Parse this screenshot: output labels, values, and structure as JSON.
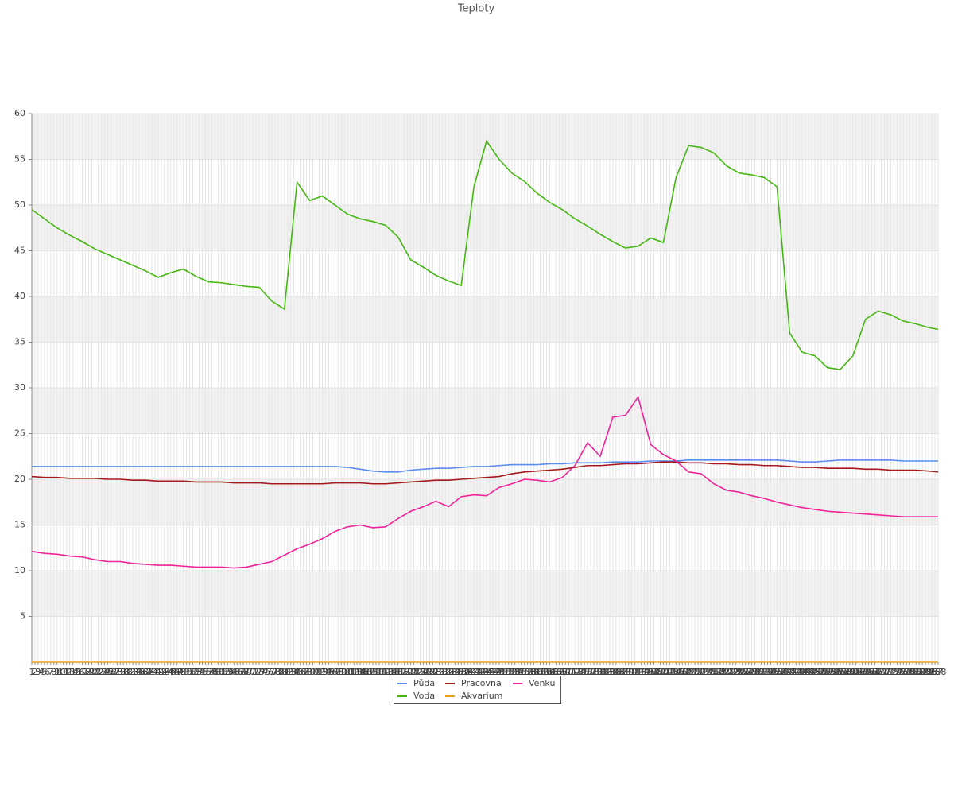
{
  "chart_data": {
    "type": "line",
    "title": "Teploty",
    "x": [
      1,
      5,
      9,
      13,
      17,
      21,
      25,
      29,
      33,
      37,
      41,
      45,
      49,
      53,
      57,
      61,
      65,
      69,
      73,
      77,
      81,
      85,
      89,
      93,
      97,
      101,
      105,
      109,
      113,
      117,
      121,
      125,
      129,
      133,
      137,
      141,
      145,
      149,
      153,
      157,
      161,
      165,
      169,
      173,
      177,
      181,
      185,
      189,
      193,
      197,
      201,
      205,
      209,
      213,
      217,
      221,
      225,
      229,
      233,
      237,
      241,
      245,
      249,
      253,
      257,
      261,
      265,
      269,
      273,
      277,
      281,
      285,
      288
    ],
    "xlim": [
      1,
      288
    ],
    "xticks": [
      1,
      2,
      3,
      4,
      5,
      6,
      7,
      8,
      9,
      10,
      11,
      12,
      13,
      14,
      15,
      16,
      17,
      18,
      19,
      20,
      21,
      22,
      23,
      24,
      25,
      26,
      27,
      28,
      29,
      30,
      31,
      32,
      33,
      34,
      35,
      36,
      37,
      38,
      39,
      40,
      41,
      42,
      43,
      44,
      45,
      46,
      47,
      48,
      49,
      50,
      51,
      52,
      53,
      54,
      55,
      56,
      57,
      58,
      59,
      60,
      61,
      62,
      63,
      64,
      65,
      66,
      67,
      68,
      69,
      70,
      71,
      72,
      73,
      74,
      75,
      76,
      77,
      78,
      79,
      80,
      81,
      82,
      83,
      84,
      85,
      86,
      87,
      88,
      89,
      90,
      91,
      92,
      93,
      94,
      95,
      96,
      97,
      98,
      99,
      100,
      101,
      102,
      103,
      104,
      105,
      106,
      107,
      108,
      109,
      110,
      111,
      112,
      113,
      114,
      115,
      116,
      117,
      118,
      119,
      120,
      121,
      122,
      123,
      124,
      125,
      126,
      127,
      128,
      129,
      130,
      131,
      132,
      133,
      134,
      135,
      136,
      137,
      138,
      139,
      140,
      141,
      142,
      143,
      144,
      145,
      146,
      147,
      148,
      149,
      150,
      151,
      152,
      153,
      154,
      155,
      156,
      157,
      158,
      159,
      160,
      161,
      162,
      163,
      164,
      165,
      166,
      167,
      168,
      169,
      170,
      171,
      172,
      173,
      174,
      175,
      176,
      177,
      178,
      179,
      180,
      181,
      182,
      183,
      184,
      185,
      186,
      187,
      188,
      189,
      190,
      191,
      192,
      193,
      194,
      195,
      196,
      197,
      198,
      199,
      200,
      201,
      202,
      203,
      204,
      205,
      206,
      207,
      208,
      209,
      210,
      211,
      212,
      213,
      214,
      215,
      216,
      217,
      218,
      219,
      220,
      221,
      222,
      223,
      224,
      225,
      226,
      227,
      228,
      229,
      230,
      231,
      232,
      233,
      234,
      235,
      236,
      237,
      238,
      239,
      240,
      241,
      242,
      243,
      244,
      245,
      246,
      247,
      248,
      249,
      250,
      251,
      252,
      253,
      254,
      255,
      256,
      257,
      258,
      259,
      260,
      261,
      262,
      263,
      264,
      265,
      266,
      267,
      268,
      269,
      270,
      271,
      272,
      273,
      274,
      275,
      276,
      277,
      278,
      279,
      280,
      281,
      282,
      283,
      284,
      285,
      286,
      287,
      288
    ],
    "ylim": [
      0,
      60
    ],
    "yticks": [
      5,
      10,
      15,
      20,
      25,
      30,
      35,
      40,
      45,
      50,
      55,
      60
    ],
    "grid": true,
    "series": [
      {
        "name": "Půda",
        "color": "#5b8def",
        "values": [
          21.4,
          21.4,
          21.4,
          21.4,
          21.4,
          21.4,
          21.4,
          21.4,
          21.4,
          21.4,
          21.4,
          21.4,
          21.4,
          21.4,
          21.4,
          21.4,
          21.4,
          21.4,
          21.4,
          21.4,
          21.4,
          21.4,
          21.4,
          21.4,
          21.4,
          21.3,
          21.1,
          20.9,
          20.8,
          20.8,
          21.0,
          21.1,
          21.2,
          21.2,
          21.3,
          21.4,
          21.4,
          21.5,
          21.6,
          21.6,
          21.6,
          21.7,
          21.7,
          21.8,
          21.8,
          21.8,
          21.9,
          21.9,
          21.9,
          22.0,
          22.0,
          22.0,
          22.1,
          22.1,
          22.1,
          22.1,
          22.1,
          22.1,
          22.1,
          22.1,
          22.0,
          21.9,
          21.9,
          22.0,
          22.1,
          22.1,
          22.1,
          22.1,
          22.1,
          22.0,
          22.0,
          22.0,
          22.0
        ]
      },
      {
        "name": "Voda",
        "color": "#44b811",
        "values": [
          49.5,
          48.5,
          47.5,
          46.7,
          46.0,
          45.2,
          44.6,
          44.0,
          43.4,
          42.8,
          42.1,
          42.6,
          43.0,
          42.2,
          41.6,
          41.5,
          41.3,
          41.1,
          41.0,
          39.5,
          38.6,
          52.5,
          50.5,
          51.0,
          50.0,
          49.0,
          48.5,
          48.2,
          47.8,
          46.5,
          44.0,
          43.2,
          42.3,
          41.7,
          41.2,
          52.0,
          57.0,
          55.0,
          53.5,
          52.6,
          51.3,
          50.3,
          49.5,
          48.5,
          47.7,
          46.8,
          46.0,
          45.3,
          45.5,
          46.4,
          45.9,
          53.0,
          56.5,
          56.3,
          55.7,
          54.3,
          53.5,
          53.3,
          53.0,
          52.0,
          36.0,
          33.9,
          33.5,
          32.2,
          32.0,
          33.5,
          37.5,
          38.4,
          38.0,
          37.3,
          37.0,
          36.6,
          36.4
        ]
      },
      {
        "name": "Pracovna",
        "color": "#a51a1a",
        "values": [
          20.3,
          20.2,
          20.2,
          20.1,
          20.1,
          20.1,
          20.0,
          20.0,
          19.9,
          19.9,
          19.8,
          19.8,
          19.8,
          19.7,
          19.7,
          19.7,
          19.6,
          19.6,
          19.6,
          19.5,
          19.5,
          19.5,
          19.5,
          19.5,
          19.6,
          19.6,
          19.6,
          19.5,
          19.5,
          19.6,
          19.7,
          19.8,
          19.9,
          19.9,
          20.0,
          20.1,
          20.2,
          20.3,
          20.6,
          20.8,
          20.9,
          21.0,
          21.1,
          21.3,
          21.5,
          21.5,
          21.6,
          21.7,
          21.7,
          21.8,
          21.9,
          21.9,
          21.8,
          21.8,
          21.7,
          21.7,
          21.6,
          21.6,
          21.5,
          21.5,
          21.4,
          21.3,
          21.3,
          21.2,
          21.2,
          21.2,
          21.1,
          21.1,
          21.0,
          21.0,
          21.0,
          20.9,
          20.8
        ]
      },
      {
        "name": "Akvarium",
        "color": "#e8a31a",
        "values": [
          0,
          0,
          0,
          0,
          0,
          0,
          0,
          0,
          0,
          0,
          0,
          0,
          0,
          0,
          0,
          0,
          0,
          0,
          0,
          0,
          0,
          0,
          0,
          0,
          0,
          0,
          0,
          0,
          0,
          0,
          0,
          0,
          0,
          0,
          0,
          0,
          0,
          0,
          0,
          0,
          0,
          0,
          0,
          0,
          0,
          0,
          0,
          0,
          0,
          0,
          0,
          0,
          0,
          0,
          0,
          0,
          0,
          0,
          0,
          0,
          0,
          0,
          0,
          0,
          0,
          0,
          0,
          0,
          0,
          0,
          0,
          0,
          0
        ]
      },
      {
        "name": "Venku",
        "color": "#ee2299",
        "values": [
          12.1,
          11.9,
          11.8,
          11.6,
          11.5,
          11.2,
          11.0,
          11.0,
          10.8,
          10.7,
          10.6,
          10.6,
          10.5,
          10.4,
          10.4,
          10.4,
          10.3,
          10.4,
          10.7,
          11.0,
          11.7,
          12.4,
          12.9,
          13.5,
          14.3,
          14.8,
          15.0,
          14.7,
          14.8,
          15.7,
          16.5,
          17.0,
          17.6,
          17.0,
          18.1,
          18.3,
          18.2,
          19.1,
          19.5,
          20.0,
          19.9,
          19.7,
          20.2,
          21.5,
          24.0,
          22.5,
          26.8,
          27.0,
          29.0,
          23.8,
          22.7,
          22.0,
          20.8,
          20.6,
          19.5,
          18.8,
          18.6,
          18.2,
          17.9,
          17.5,
          17.2,
          16.9,
          16.7,
          16.5,
          16.4,
          16.3,
          16.2,
          16.1,
          16.0,
          15.9,
          15.9,
          15.9,
          15.9
        ]
      }
    ]
  }
}
